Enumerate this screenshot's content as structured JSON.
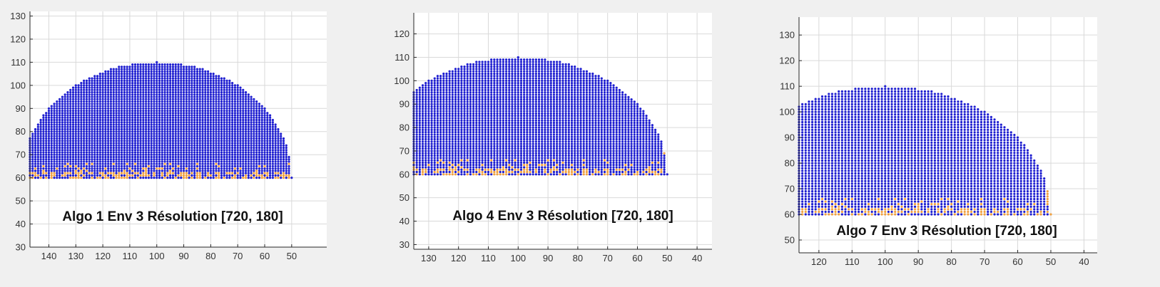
{
  "colors": {
    "background": "#f0f0f0",
    "axes_bg": "#ffffff",
    "grid": "#d9d9d9",
    "axis_line": "#262626",
    "reachable_point": "#1f1fd0",
    "boundary_point": "#f0a040"
  },
  "chart_data": [
    {
      "type": "scatter",
      "title": "Algo 1 Env 3 Résolution [720, 180]",
      "x_reversed": true,
      "xlim": [
        37,
        147
      ],
      "ylim": [
        30,
        132
      ],
      "xticks": [
        140,
        130,
        120,
        110,
        100,
        90,
        80,
        70,
        60,
        50
      ],
      "yticks": [
        30,
        40,
        50,
        60,
        70,
        80,
        90,
        100,
        110,
        120,
        130
      ],
      "grid": true,
      "region": {
        "description_values": "filled dot grid inside a semicircle",
        "center": [
          100,
          60
        ],
        "radius": 50,
        "y_floor": 60,
        "x_left_clip": 147,
        "x_right_clip": 50,
        "step": 1
      },
      "series": [
        {
          "color": "#1f1fd0",
          "points": "interior"
        },
        {
          "color": "#f0a040",
          "points": "edge_band",
          "y_band": [
            60,
            66
          ]
        }
      ]
    },
    {
      "type": "scatter",
      "title": "Algo 4 Env 3 Résolution [720, 180]",
      "x_reversed": true,
      "xlim": [
        35,
        135
      ],
      "ylim": [
        28,
        129
      ],
      "xticks": [
        130,
        120,
        110,
        100,
        90,
        80,
        70,
        60,
        50,
        40
      ],
      "yticks": [
        30,
        40,
        50,
        60,
        70,
        80,
        90,
        100,
        110,
        120
      ],
      "grid": true,
      "region": {
        "description_values": "filled dot grid inside a semicircle",
        "center": [
          100,
          60
        ],
        "radius": 50,
        "y_floor": 60,
        "x_left_clip": 135,
        "x_right_clip": 50,
        "step": 1
      },
      "series": [
        {
          "color": "#1f1fd0",
          "points": "interior"
        },
        {
          "color": "#f0a040",
          "points": "edge_band",
          "y_band": [
            60,
            66
          ]
        }
      ]
    },
    {
      "type": "scatter",
      "title": "Algo 7 Env 3 Résolution [720, 180]",
      "x_reversed": true,
      "xlim": [
        36,
        126
      ],
      "ylim": [
        45,
        137
      ],
      "xticks": [
        120,
        110,
        100,
        90,
        80,
        70,
        60,
        50,
        40
      ],
      "yticks": [
        50,
        60,
        70,
        80,
        90,
        100,
        110,
        120,
        130
      ],
      "grid": true,
      "region": {
        "description_values": "filled dot grid inside a semicircle",
        "center": [
          100,
          60
        ],
        "radius": 50,
        "y_floor": 60,
        "x_left_clip": 126,
        "x_right_clip": 50,
        "step": 1
      },
      "series": [
        {
          "color": "#1f1fd0",
          "points": "interior"
        },
        {
          "color": "#f0a040",
          "points": "edge_band",
          "y_band": [
            60,
            66
          ]
        }
      ]
    }
  ]
}
